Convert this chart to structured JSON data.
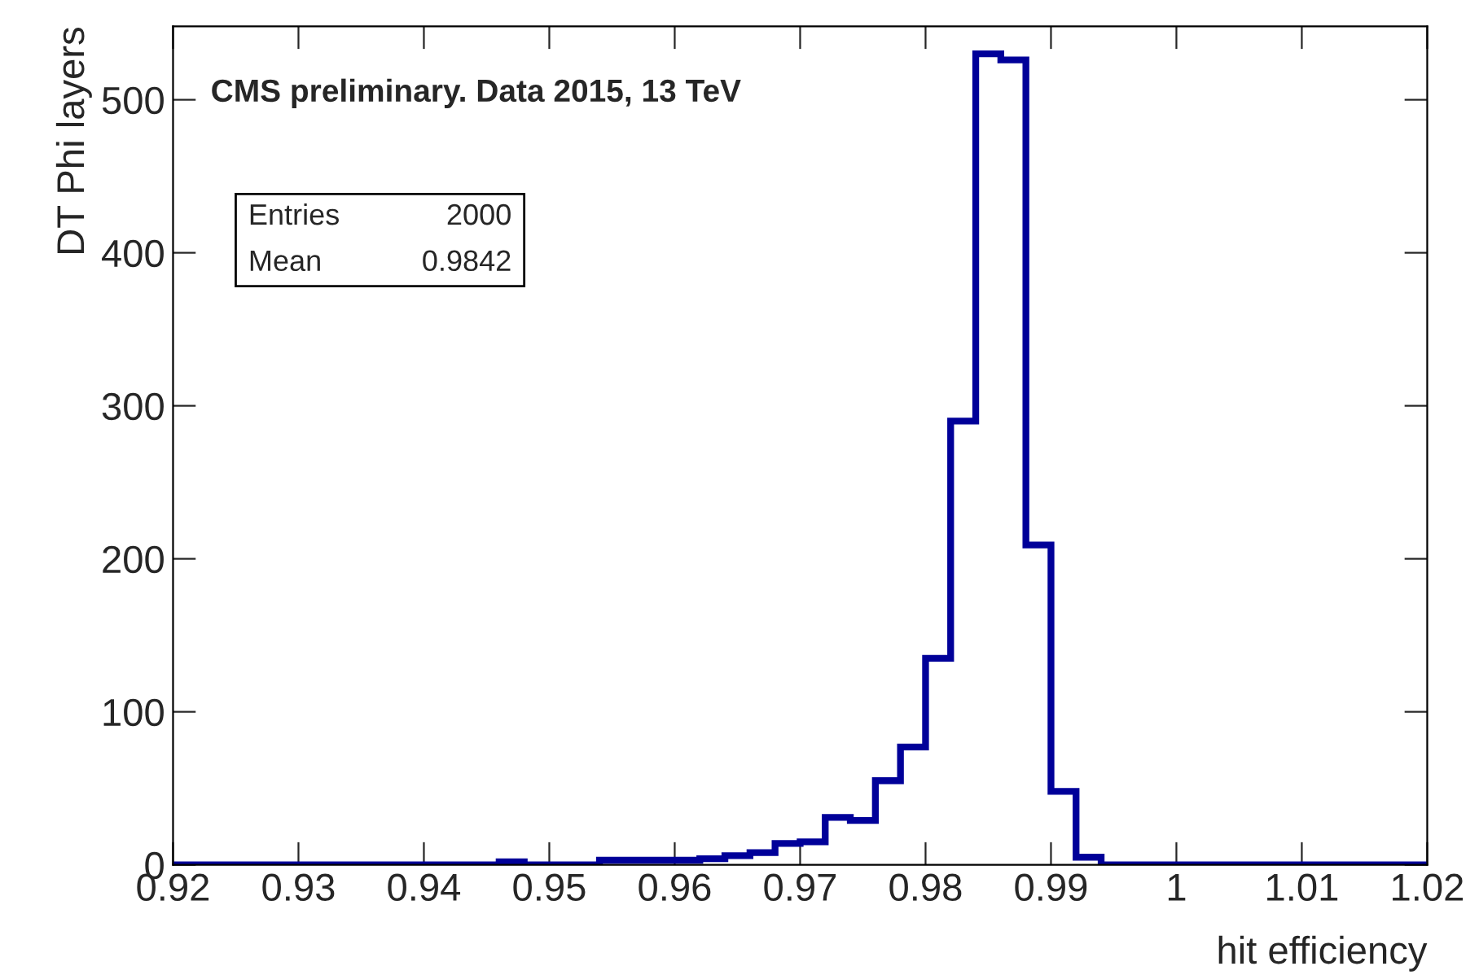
{
  "chart_data": {
    "type": "histogram",
    "xlabel": "hit efficiency",
    "ylabel": "DT Phi layers",
    "annotations": [
      "CMS preliminary. Data 2015, 13 TeV",
      "Entries",
      "2000",
      "Mean",
      "0.9842"
    ],
    "bins": [
      0.92,
      0.922,
      0.924,
      0.926,
      0.928,
      0.93,
      0.932,
      0.934,
      0.936,
      0.938,
      0.94,
      0.942,
      0.944,
      0.946,
      0.948,
      0.95,
      0.952,
      0.954,
      0.956,
      0.958,
      0.96,
      0.962,
      0.964,
      0.966,
      0.968,
      0.97,
      0.972,
      0.974,
      0.976,
      0.978,
      0.98,
      0.982,
      0.984,
      0.986,
      0.988,
      0.99,
      0.992,
      0.994,
      0.996,
      0.998,
      1.0,
      1.002,
      1.004,
      1.006,
      1.008,
      1.01,
      1.012,
      1.014,
      1.016,
      1.018,
      1.02
    ],
    "values": [
      0,
      0,
      0,
      0,
      0,
      0,
      0,
      0,
      0,
      0,
      0,
      0,
      0,
      2,
      0,
      0,
      0,
      3,
      3,
      3,
      3,
      4,
      6,
      8,
      14,
      15,
      31,
      29,
      55,
      77,
      135,
      290,
      530,
      526,
      209,
      48,
      5,
      0,
      0,
      0,
      0,
      0,
      0,
      0,
      0,
      0,
      0,
      0,
      0,
      0
    ],
    "color": "#000099",
    "xlim": [
      0.92,
      1.02
    ],
    "ylim": [
      0,
      548
    ],
    "xticks": [
      0.92,
      0.93,
      0.94,
      0.95,
      0.96,
      0.97,
      0.98,
      0.99,
      1,
      1.01,
      1.02
    ],
    "yticks": [
      0,
      100,
      200,
      300,
      400,
      500
    ],
    "grid": false
  }
}
